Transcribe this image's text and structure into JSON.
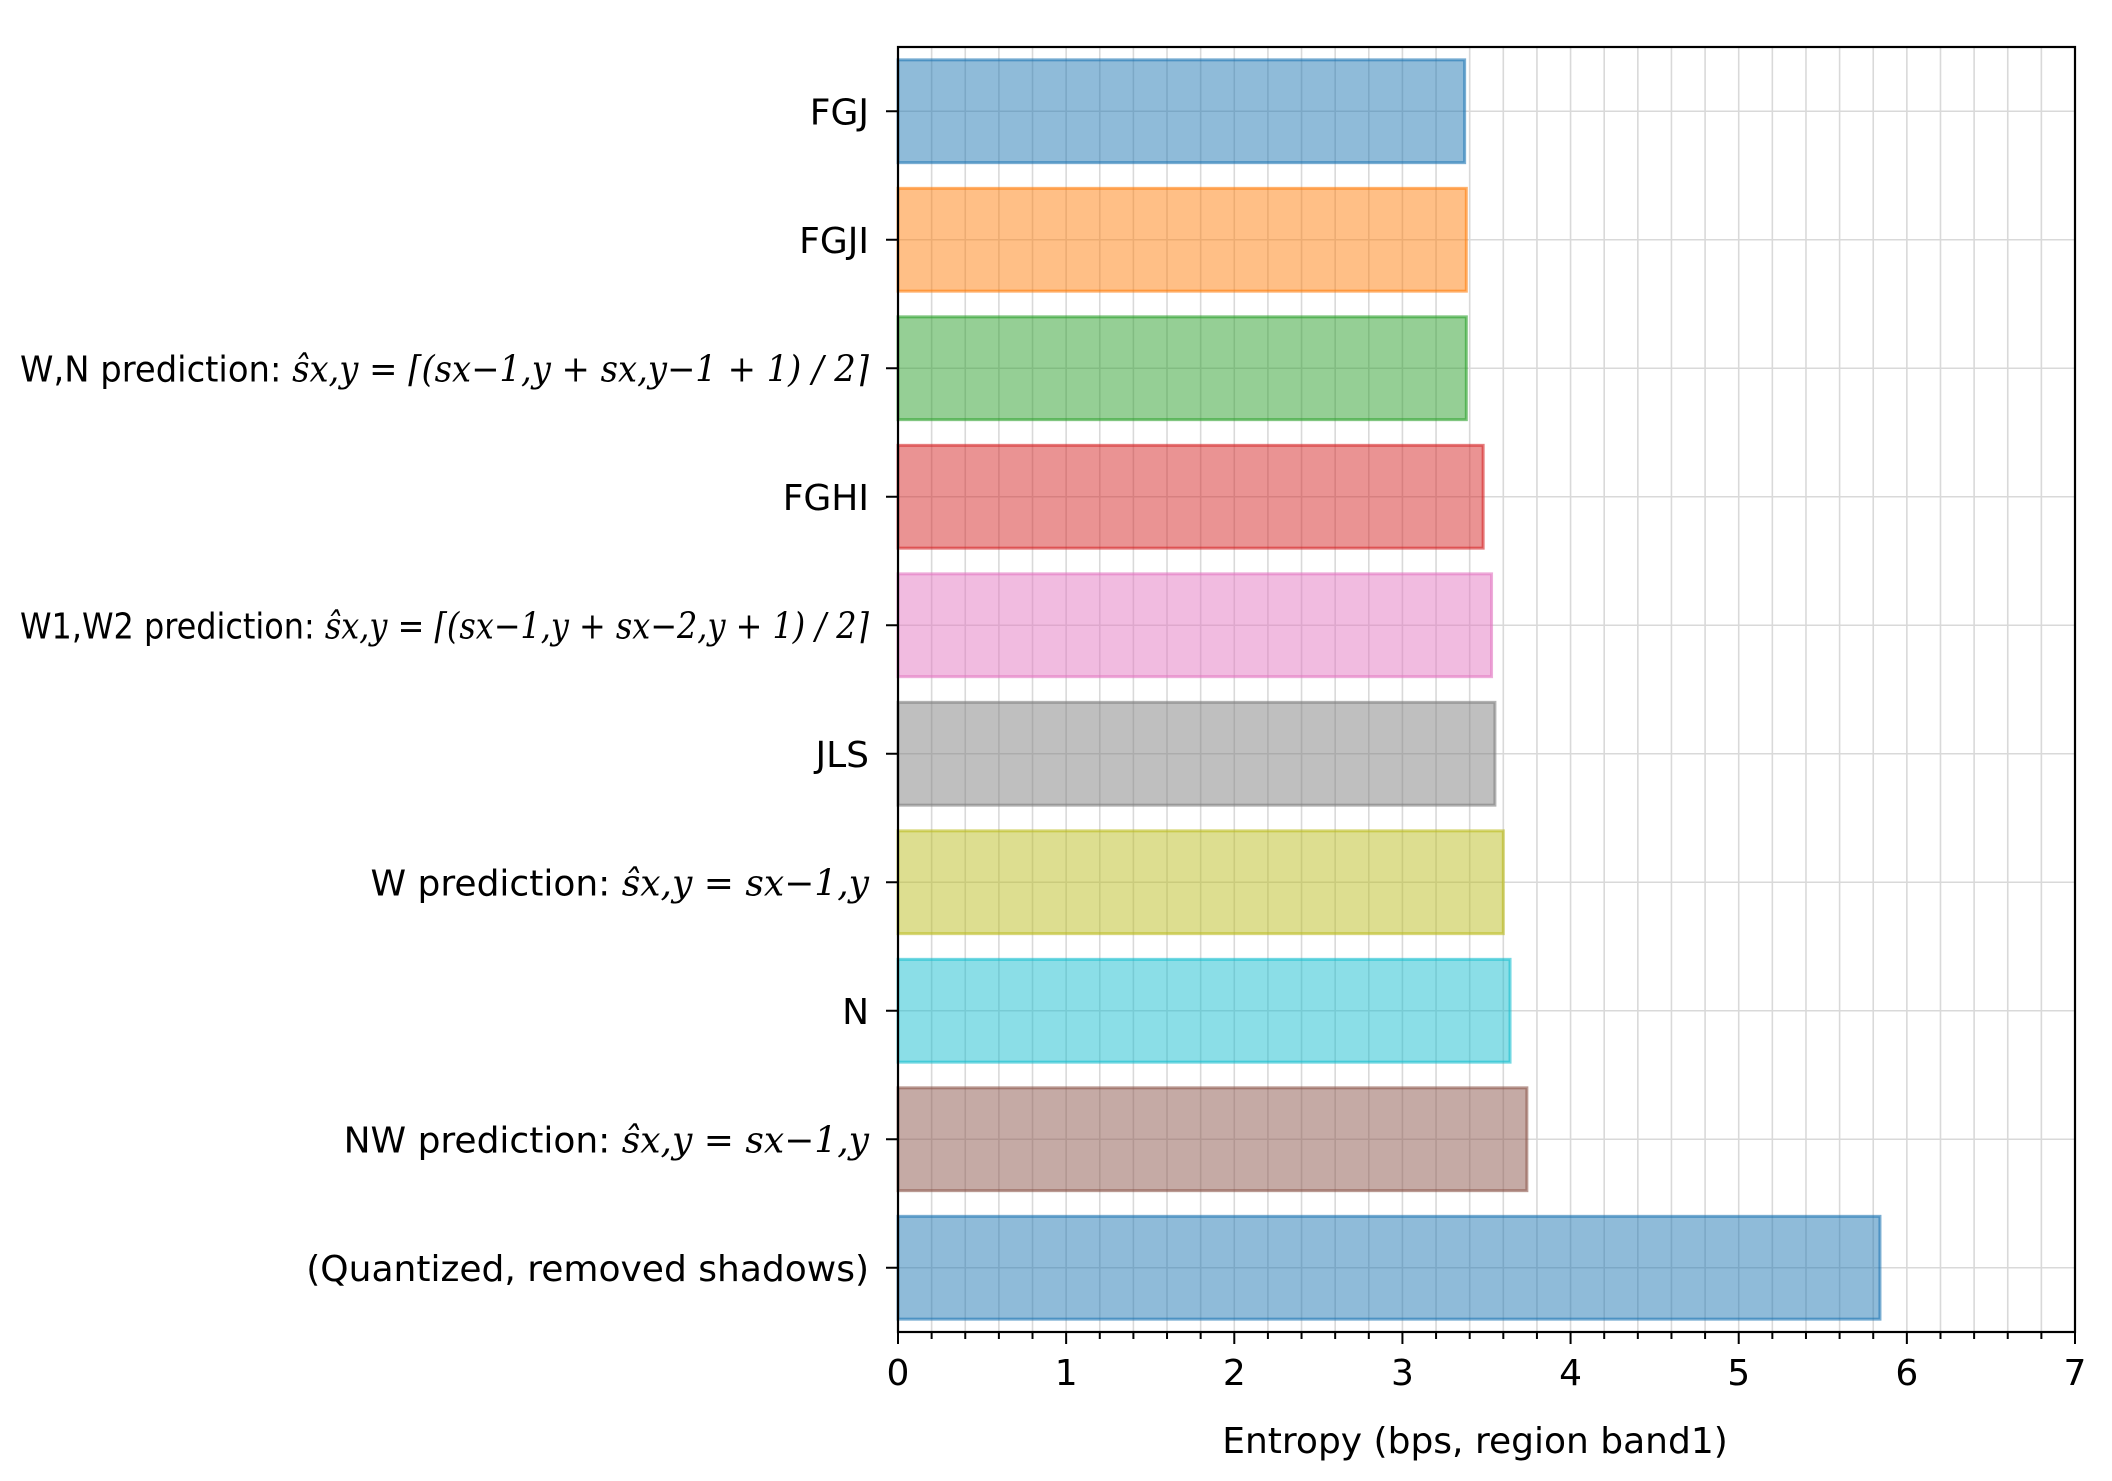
{
  "chart_data": {
    "type": "bar",
    "orientation": "horizontal",
    "xlabel": "Entropy (bps, region band1)",
    "ylabel": "",
    "xlim": [
      0,
      7
    ],
    "x_ticks": [
      "0",
      "1",
      "2",
      "3",
      "4",
      "5",
      "6",
      "7"
    ],
    "x_minor_step": 0.2,
    "grid": true,
    "categories": [
      {
        "label": "FGJ",
        "math": "",
        "value": 3.37,
        "color": "#1f77b4"
      },
      {
        "label": "FGJI",
        "math": "",
        "value": 3.38,
        "color": "#ff7f0e"
      },
      {
        "label": "W,N prediction: ",
        "math": "ŝx,y = ⌈(sx−1,y + sx,y−1 + 1) / 2⌉",
        "value": 3.38,
        "color": "#2ca02c"
      },
      {
        "label": "FGHI",
        "math": "",
        "value": 3.48,
        "color": "#d62728"
      },
      {
        "label": "W1,W2 prediction: ",
        "math": "ŝx,y = ⌈(sx−1,y + sx−2,y + 1) / 2⌉",
        "value": 3.53,
        "color": "#e377c2"
      },
      {
        "label": "JLS",
        "math": "",
        "value": 3.55,
        "color": "#7f7f7f"
      },
      {
        "label": "W prediction: ",
        "math": "ŝx,y = sx−1,y",
        "value": 3.6,
        "color": "#bcbd22"
      },
      {
        "label": "N",
        "math": "",
        "value": 3.64,
        "color": "#17becf"
      },
      {
        "label": "NW prediction: ",
        "math": "ŝx,y = sx−1,y",
        "value": 3.74,
        "color": "#8c564b"
      },
      {
        "label": "(Quantized, removed shadows)",
        "math": "",
        "value": 5.84,
        "color": "#1f77b4"
      }
    ]
  }
}
